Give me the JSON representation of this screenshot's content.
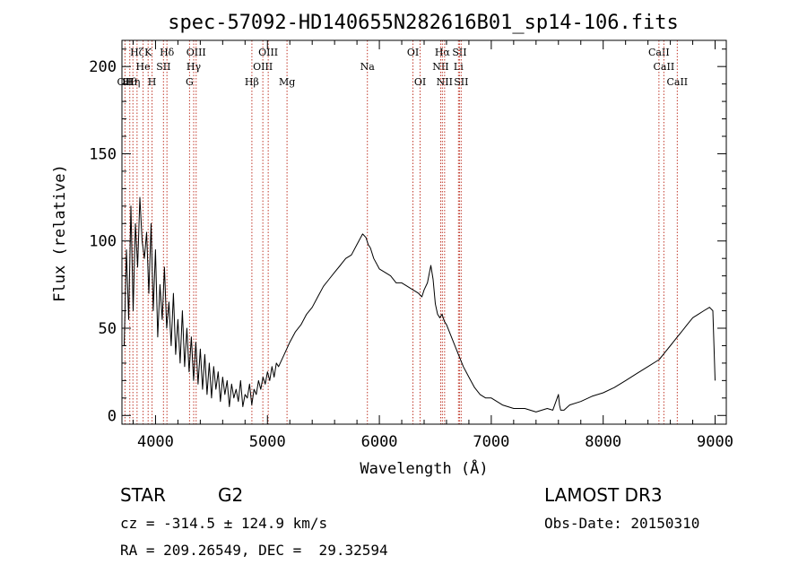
{
  "chart_data": {
    "type": "line",
    "title": "spec-57092-HD140655N282616B01_sp14-106.fits",
    "xlabel": "Wavelength (Å)",
    "ylabel": "Flux (relative)",
    "xlim": [
      3700,
      9100
    ],
    "ylim": [
      -5,
      215
    ],
    "xticks": [
      4000,
      5000,
      6000,
      7000,
      8000,
      9000
    ],
    "yticks": [
      0,
      50,
      100,
      150,
      200
    ],
    "series": [
      {
        "name": "flux",
        "x": [
          3720,
          3740,
          3760,
          3780,
          3800,
          3820,
          3840,
          3860,
          3880,
          3900,
          3920,
          3940,
          3960,
          3980,
          4000,
          4020,
          4040,
          4060,
          4080,
          4100,
          4120,
          4140,
          4160,
          4180,
          4200,
          4220,
          4240,
          4260,
          4280,
          4300,
          4320,
          4340,
          4360,
          4380,
          4400,
          4420,
          4440,
          4460,
          4480,
          4500,
          4520,
          4540,
          4560,
          4580,
          4600,
          4620,
          4640,
          4660,
          4680,
          4700,
          4720,
          4740,
          4760,
          4780,
          4800,
          4820,
          4840,
          4860,
          4880,
          4900,
          4920,
          4940,
          4960,
          4980,
          5000,
          5020,
          5040,
          5060,
          5080,
          5100,
          5150,
          5200,
          5250,
          5300,
          5350,
          5400,
          5450,
          5500,
          5550,
          5600,
          5650,
          5700,
          5750,
          5800,
          5850,
          5880,
          5900,
          5920,
          5950,
          6000,
          6050,
          6100,
          6150,
          6200,
          6250,
          6300,
          6350,
          6380,
          6400,
          6430,
          6460,
          6480,
          6500,
          6520,
          6540,
          6560,
          6580,
          6600,
          6650,
          6700,
          6750,
          6800,
          6850,
          6900,
          6950,
          7000,
          7100,
          7200,
          7300,
          7400,
          7500,
          7550,
          7600,
          7610,
          7620,
          7650,
          7700,
          7800,
          7900,
          8000,
          8100,
          8200,
          8300,
          8400,
          8500,
          8550,
          8600,
          8650,
          8700,
          8750,
          8800,
          8850,
          8900,
          8950,
          8980,
          9000
        ],
        "values": [
          40,
          95,
          55,
          120,
          60,
          110,
          85,
          125,
          100,
          90,
          105,
          70,
          110,
          60,
          95,
          45,
          75,
          55,
          85,
          50,
          65,
          40,
          70,
          35,
          55,
          30,
          60,
          28,
          50,
          25,
          45,
          20,
          42,
          18,
          38,
          15,
          35,
          12,
          30,
          10,
          28,
          15,
          25,
          8,
          22,
          12,
          20,
          5,
          18,
          10,
          15,
          8,
          20,
          5,
          12,
          10,
          18,
          6,
          15,
          12,
          20,
          15,
          22,
          18,
          25,
          20,
          28,
          22,
          30,
          28,
          35,
          42,
          48,
          52,
          58,
          62,
          68,
          74,
          78,
          82,
          86,
          90,
          92,
          98,
          104,
          102,
          98,
          96,
          90,
          84,
          82,
          80,
          76,
          76,
          74,
          72,
          70,
          68,
          72,
          76,
          86,
          78,
          64,
          58,
          56,
          58,
          54,
          52,
          44,
          36,
          28,
          22,
          16,
          12,
          10,
          10,
          6,
          4,
          4,
          2,
          4,
          3,
          12,
          6,
          3,
          3,
          6,
          8,
          11,
          13,
          16,
          20,
          24,
          28,
          32,
          36,
          40,
          44,
          48,
          52,
          56,
          58,
          60,
          62,
          60,
          20
        ]
      }
    ],
    "lines": [
      {
        "wl": 3727,
        "label": "OII",
        "row": 3
      },
      {
        "wl": 3770,
        "label": "Hθ",
        "row": 3
      },
      {
        "wl": 3798,
        "label": "Hη",
        "row": 3
      },
      {
        "wl": 3835,
        "label": "Hζ",
        "row": 1
      },
      {
        "wl": 3889,
        "label": "He",
        "row": 2
      },
      {
        "wl": 3934,
        "label": "K",
        "row": 1
      },
      {
        "wl": 3969,
        "label": "H",
        "row": 3
      },
      {
        "wl": 4071,
        "label": "SII",
        "row": 2
      },
      {
        "wl": 4102,
        "label": "Hδ",
        "row": 1
      },
      {
        "wl": 4304,
        "label": "G",
        "row": 3
      },
      {
        "wl": 4341,
        "label": "Hγ",
        "row": 2
      },
      {
        "wl": 4363,
        "label": "OIII",
        "row": 1
      },
      {
        "wl": 4861,
        "label": "Hβ",
        "row": 3
      },
      {
        "wl": 4959,
        "label": "OIII",
        "row": 2
      },
      {
        "wl": 5007,
        "label": "OIII",
        "row": 1
      },
      {
        "wl": 5175,
        "label": "Mg",
        "row": 3
      },
      {
        "wl": 5893,
        "label": "Na",
        "row": 2
      },
      {
        "wl": 6300,
        "label": "OI",
        "row": 1
      },
      {
        "wl": 6364,
        "label": "OI",
        "row": 3
      },
      {
        "wl": 6548,
        "label": "NII",
        "row": 2
      },
      {
        "wl": 6563,
        "label": "Hα",
        "row": 1
      },
      {
        "wl": 6583,
        "label": "NII",
        "row": 3
      },
      {
        "wl": 6707,
        "label": "Li",
        "row": 2
      },
      {
        "wl": 6716,
        "label": "SII",
        "row": 1
      },
      {
        "wl": 6731,
        "label": "SII",
        "row": 3
      },
      {
        "wl": 8498,
        "label": "CaII",
        "row": 1
      },
      {
        "wl": 8542,
        "label": "CaII",
        "row": 2
      },
      {
        "wl": 8662,
        "label": "CaII",
        "row": 3
      }
    ]
  },
  "info": {
    "object_type": "STAR",
    "subclass": "G2",
    "cz": "cz = -314.5 ± 124.9 km/s",
    "coords": "RA = 209.26549, DEC =  29.32594",
    "survey": "LAMOST DR3",
    "obs_date": "Obs-Date: 20150310"
  },
  "colors": {
    "spectrum": "#000000",
    "line_markers": "#c0392b"
  }
}
